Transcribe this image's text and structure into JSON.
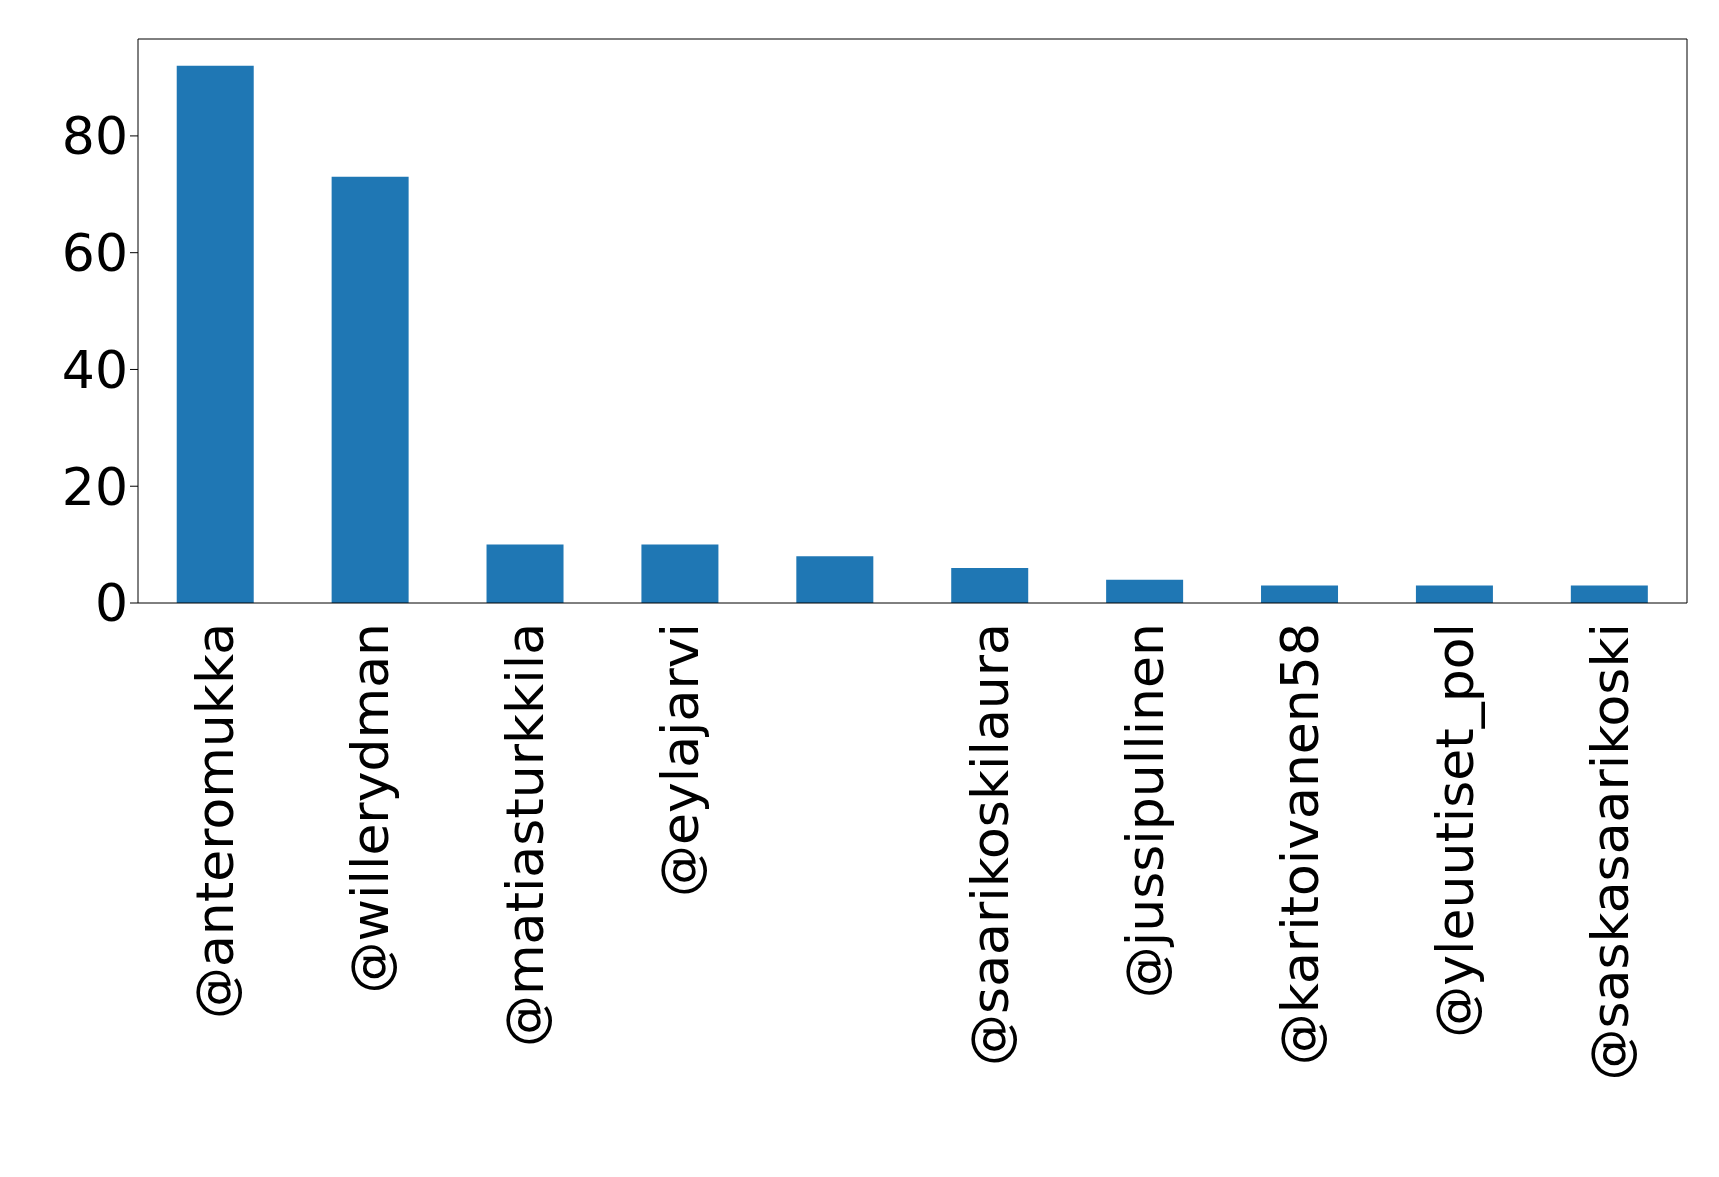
{
  "chart_data": {
    "type": "bar",
    "categories": [
      "@anteromukka",
      "@willerydman",
      "@matiasturkkila",
      "@eylajarvi",
      null,
      "@saarikoskilaura",
      "@jussipullinen",
      "@karitoivanen58",
      "@yleuutiset_pol",
      "@saskasaarikoski"
    ],
    "values": [
      92,
      73,
      10,
      10,
      8,
      6,
      4,
      3,
      3,
      3
    ],
    "color": "#1f77b4",
    "ylim": [
      0,
      96.6
    ],
    "yticks": [
      0,
      20,
      40,
      60,
      80
    ],
    "grid": false,
    "legend": false
  }
}
